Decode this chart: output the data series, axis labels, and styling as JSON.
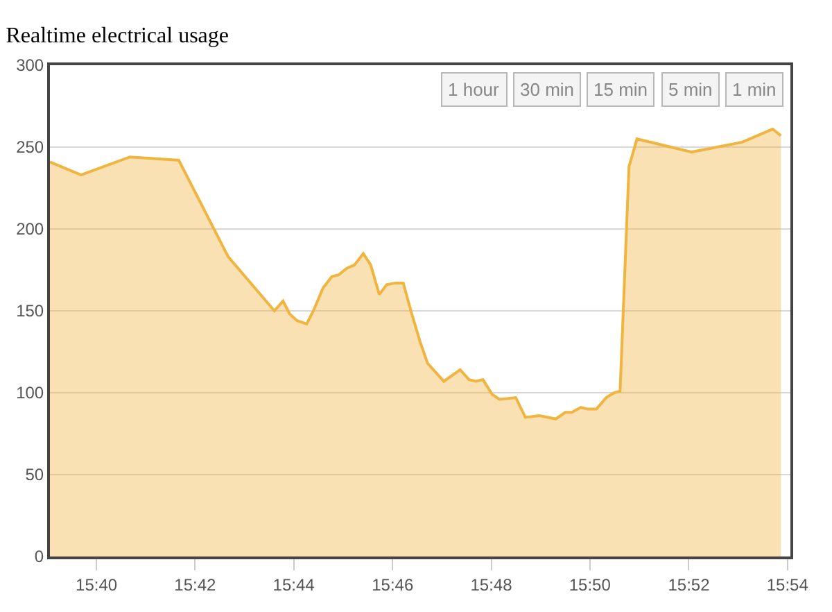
{
  "chart_data": {
    "type": "area",
    "title": "Realtime electrical usage",
    "x": [
      15.651,
      15.6615,
      15.678,
      15.6945,
      15.7112,
      15.7268,
      15.7297,
      15.732,
      15.7345,
      15.7377,
      15.7402,
      15.7432,
      15.7462,
      15.7485,
      15.7512,
      15.7538,
      15.7568,
      15.7593,
      15.7622,
      15.7647,
      15.7675,
      15.7703,
      15.7732,
      15.776,
      15.7785,
      15.784,
      15.7895,
      15.7925,
      15.7948,
      15.7972,
      15.8003,
      15.8028,
      15.8083,
      15.8115,
      15.8163,
      15.8218,
      15.825,
      15.8272,
      15.8302,
      15.8327,
      15.8355,
      15.8388,
      15.8415,
      15.8435,
      15.8465,
      15.8492,
      15.8677,
      15.8847,
      15.895,
      15.8978
    ],
    "series": [
      {
        "color": "#f0b440",
        "values": [
          241,
          233,
          244,
          242,
          183,
          150,
          156,
          148,
          144,
          142,
          151,
          164,
          171,
          172,
          176,
          178,
          185,
          178,
          160,
          166,
          167,
          167,
          148,
          131,
          118,
          107,
          114,
          108,
          107,
          108,
          99,
          96,
          97,
          85,
          86,
          84,
          88,
          88,
          91,
          90,
          90,
          97,
          100,
          101,
          238,
          255,
          247,
          253,
          261,
          257
        ]
      }
    ],
    "xlim": [
      15.651,
      15.901
    ],
    "xticks": [
      {
        "value": 15.6667,
        "label": "15:40"
      },
      {
        "value": 15.7,
        "label": "15:42"
      },
      {
        "value": 15.7333,
        "label": "15:44"
      },
      {
        "value": 15.7667,
        "label": "15:46"
      },
      {
        "value": 15.8,
        "label": "15:48"
      },
      {
        "value": 15.8333,
        "label": "15:50"
      },
      {
        "value": 15.8667,
        "label": "15:52"
      },
      {
        "value": 15.9,
        "label": "15:54"
      }
    ],
    "ylim": [
      0,
      300
    ],
    "yticks": [
      0,
      50,
      100,
      150,
      200,
      250,
      300
    ],
    "grid": "y",
    "marker": "none",
    "line_style": "solid",
    "annotations": [
      "1 hour",
      "30 min",
      "15 min",
      "5 min",
      "1 min"
    ]
  }
}
